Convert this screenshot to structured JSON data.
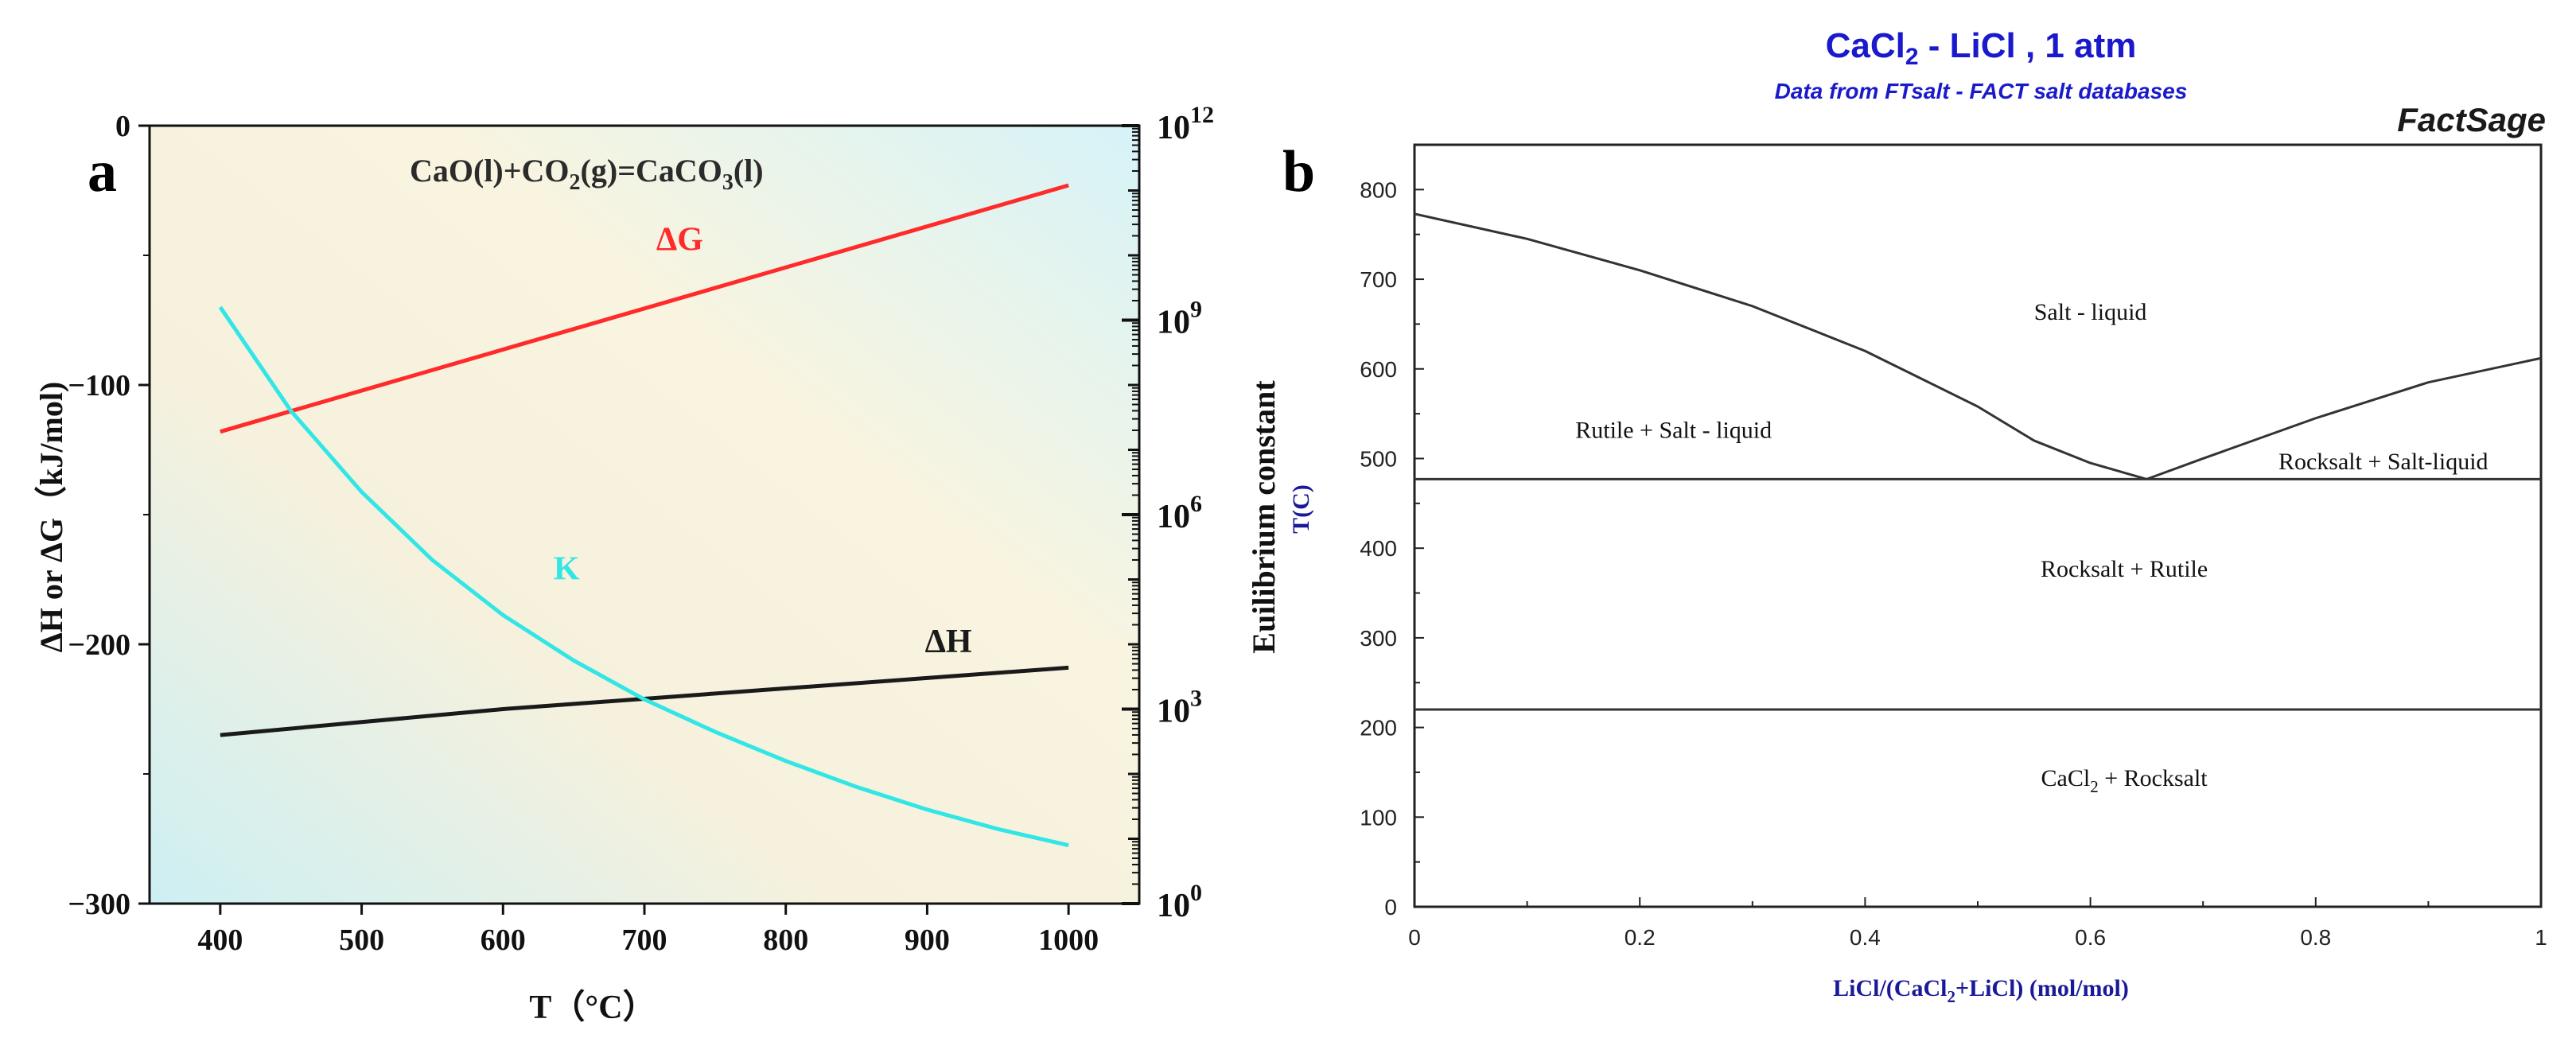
{
  "chart_data": [
    {
      "type": "line",
      "panel_label": "a",
      "title": "CaO(l)+CO2(g)=CaCO3(l)",
      "reaction_parts": [
        "CaO(l)+CO",
        "2",
        "(g)=CaCO",
        "3",
        "(l)"
      ],
      "xlabel": "T（°C）",
      "ylabel": "ΔH or ΔG（kJ/mol)",
      "y2label": "Euilibrium constant",
      "xlim": [
        350,
        1050
      ],
      "ylim": [
        -300,
        0
      ],
      "y2lim_log10": [
        0,
        12
      ],
      "xticks": [
        400,
        500,
        600,
        700,
        800,
        900,
        1000
      ],
      "yticks": [
        0,
        -100,
        -200,
        -300
      ],
      "yticks_labels": [
        "0",
        "−100",
        "−200",
        "−300"
      ],
      "y2ticks": [
        {
          "base": "10",
          "exp": "0",
          "log": 0
        },
        {
          "base": "10",
          "exp": "3",
          "log": 3
        },
        {
          "base": "10",
          "exp": "6",
          "log": 6
        },
        {
          "base": "10",
          "exp": "9",
          "log": 9
        },
        {
          "base": "10",
          "exp": "12",
          "log": 12
        }
      ],
      "series": [
        {
          "name": "ΔG",
          "color": "#ff2a2a",
          "axis": "left",
          "x": [
            400,
            1000
          ],
          "y": [
            -118,
            -23
          ]
        },
        {
          "name": "ΔH",
          "color": "#1a1a1a",
          "axis": "left",
          "x": [
            400,
            500,
            600,
            700,
            800,
            900,
            1000
          ],
          "y": [
            -235,
            -230,
            -225,
            -221,
            -217,
            -213,
            -209
          ]
        },
        {
          "name": "K",
          "color": "#33e6e6",
          "axis": "right_log10",
          "x": [
            400,
            450,
            500,
            550,
            600,
            650,
            700,
            750,
            800,
            850,
            900,
            950,
            1000
          ],
          "y": [
            9.2,
            7.6,
            6.35,
            5.3,
            4.45,
            3.75,
            3.15,
            2.65,
            2.2,
            1.8,
            1.45,
            1.15,
            0.9
          ]
        }
      ],
      "annotations": [
        {
          "text": "ΔG",
          "color": "#ff2a2a",
          "x": 725,
          "y": -48
        },
        {
          "text": "K",
          "color": "#33e6e6",
          "x": 645,
          "y": -175
        },
        {
          "text": "ΔH",
          "color": "#1a1a1a",
          "x": 915,
          "y": -203
        }
      ]
    },
    {
      "type": "line",
      "panel_label": "b",
      "title": "CaCl2 - LiCl , 1 atm",
      "title_parts": [
        "CaCl",
        "2",
        " - LiCl , 1 atm"
      ],
      "subtitle": "Data from FTsalt - FACT salt databases",
      "brand": "FactSage",
      "xlabel": "LiCl/(CaCl2+LiCl) (mol/mol)",
      "xlabel_parts": [
        "LiCl/(CaCl",
        "2",
        "+LiCl) (mol/mol)"
      ],
      "ylabel": "T(C)",
      "xlim": [
        0,
        1
      ],
      "ylim": [
        0,
        850
      ],
      "xticks": [
        0,
        0.2,
        0.4,
        0.6,
        0.8,
        1
      ],
      "xticks_labels": [
        "0",
        "0.2",
        "0.4",
        "0.6",
        "0.8",
        "1"
      ],
      "yticks": [
        0,
        100,
        200,
        300,
        400,
        500,
        600,
        700,
        800
      ],
      "series": [
        {
          "name": "liquidus-left",
          "color": "#333333",
          "x": [
            0,
            0.1,
            0.2,
            0.3,
            0.4,
            0.5,
            0.55,
            0.6,
            0.65
          ],
          "y": [
            773,
            745,
            710,
            670,
            620,
            558,
            520,
            495,
            477
          ]
        },
        {
          "name": "liquidus-right",
          "color": "#333333",
          "x": [
            0.65,
            0.7,
            0.8,
            0.9,
            1.0
          ],
          "y": [
            477,
            500,
            545,
            585,
            612
          ]
        },
        {
          "name": "eutectic",
          "color": "#333333",
          "x": [
            0,
            1
          ],
          "y": [
            477,
            477
          ]
        },
        {
          "name": "transition",
          "color": "#333333",
          "x": [
            0,
            1
          ],
          "y": [
            220,
            220
          ]
        }
      ],
      "regions": [
        {
          "text": "Salt - liquid",
          "x": 0.6,
          "y": 655
        },
        {
          "text": "Rutile + Salt - liquid",
          "x": 0.23,
          "y": 523
        },
        {
          "text": "Rocksalt + Salt-liquid",
          "x": 0.86,
          "y": 488
        },
        {
          "text": "Rocksalt + Rutile",
          "x": 0.63,
          "y": 368
        },
        {
          "text": "CaCl2 + Rocksalt",
          "parts": [
            "CaCl",
            "2",
            " + Rocksalt"
          ],
          "x": 0.63,
          "y": 135
        }
      ]
    }
  ]
}
